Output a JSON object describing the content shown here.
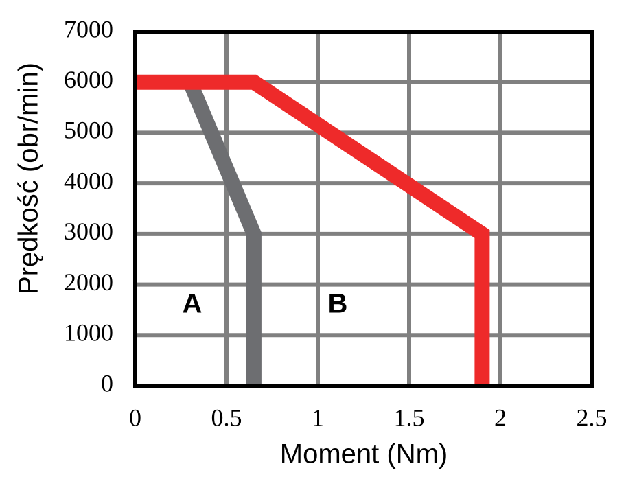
{
  "chart_data": {
    "type": "line",
    "xlabel": "Moment (Nm)",
    "ylabel": "Prędkość (obr/min)",
    "series": [
      {
        "name": "A",
        "color": "#6d6e71",
        "x": [
          0.3,
          0.65,
          0.65
        ],
        "values": [
          6000,
          3000,
          0
        ]
      },
      {
        "name": "B",
        "color": "#ee2a2a",
        "x": [
          0,
          0.65,
          1.9,
          1.9
        ],
        "values": [
          6000,
          6000,
          3000,
          0
        ]
      }
    ],
    "xlim": [
      0,
      2.5
    ],
    "xticks": [
      0,
      0.5,
      1,
      1.5,
      2,
      2.5
    ],
    "ylim": [
      0,
      7000
    ],
    "yticks": [
      0,
      1000,
      2000,
      3000,
      4000,
      5000,
      6000,
      7000
    ],
    "grid": true,
    "grid_color": "#808080"
  }
}
